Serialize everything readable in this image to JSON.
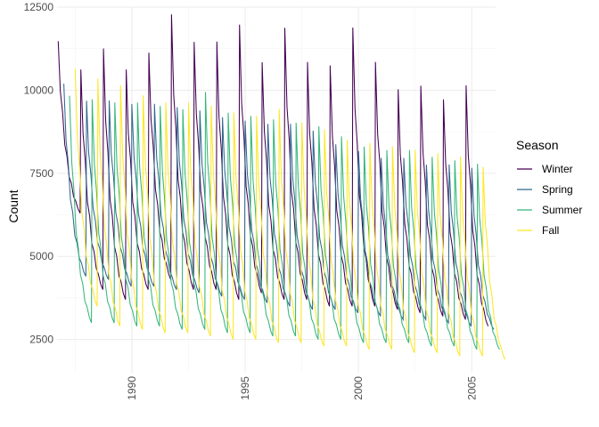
{
  "chart_data": {
    "type": "line",
    "title": "",
    "xlabel": "",
    "ylabel": "Count",
    "xlim": [
      1986.7,
      2006.05
    ],
    "ylim": [
      1500,
      12500
    ],
    "x_ticks": [
      1990,
      1995,
      2000,
      2005
    ],
    "x_tick_labels": [
      "1990",
      "1995",
      "2000",
      "2005"
    ],
    "y_ticks": [
      2500,
      5000,
      7500,
      10000,
      12500
    ],
    "y_tick_labels": [
      "2500",
      "5000",
      "7500",
      "10000",
      "12500"
    ],
    "grid": true,
    "x_tick_rotation": "vertical",
    "legend": {
      "title": "Season",
      "position": "right",
      "entries": [
        "Winter",
        "Spring",
        "Summer",
        "Fall"
      ]
    },
    "series": [
      {
        "name": "Winter",
        "color": "#440154",
        "start": 1986.75,
        "peaks": [
          11300,
          10400,
          11000,
          10400,
          10900,
          12000,
          11200,
          11200,
          11700,
          10600,
          11600,
          10600,
          10500,
          11600,
          10600,
          9800,
          9900,
          9500,
          9900
        ],
        "troughs": [
          6300,
          4000,
          3700,
          4000,
          4300,
          4000,
          4000,
          3700,
          3900,
          3700,
          3700,
          3500,
          3500,
          3500,
          3400,
          3300,
          3200,
          3100,
          2900
        ]
      },
      {
        "name": "Spring",
        "color": "#31688E",
        "start": 1987.0,
        "peaks": [
          10000,
          9500,
          9500,
          9400,
          9400,
          9300,
          9200,
          9000,
          8900,
          8800,
          8800,
          8600,
          8200,
          8000,
          7800,
          7800,
          7600,
          7600,
          7500
        ],
        "troughs": [
          4400,
          4300,
          4100,
          4100,
          4000,
          3900,
          3800,
          3700,
          3600,
          3500,
          3400,
          3400,
          3300,
          3200,
          3100,
          3100,
          3000,
          2900,
          2800
        ]
      },
      {
        "name": "Summer",
        "color": "#35B779",
        "start": 1987.25,
        "peaks": [
          9600,
          9500,
          9400,
          9400,
          9300,
          9200,
          9700,
          9100,
          9000,
          8900,
          8800,
          8700,
          8400,
          8100,
          8000,
          8000,
          7800,
          7700,
          7600
        ],
        "troughs": [
          3000,
          3000,
          2900,
          2900,
          2800,
          2800,
          2700,
          2700,
          2600,
          2600,
          2500,
          2500,
          2400,
          2400,
          2400,
          2300,
          2300,
          2200,
          2200
        ]
      },
      {
        "name": "Fall",
        "color": "#FDE725",
        "start": 1987.5,
        "peaks": [
          10400,
          10100,
          9900,
          9600,
          9400,
          9400,
          9300,
          9100,
          9000,
          9200,
          8800,
          8600,
          8300,
          8200,
          8100,
          8000,
          7900,
          7800,
          7500
        ],
        "troughs": [
          3500,
          2900,
          2800,
          2700,
          2700,
          2600,
          2500,
          2500,
          2400,
          2400,
          2300,
          2300,
          2200,
          2200,
          2100,
          2100,
          2000,
          2000,
          1900
        ]
      }
    ]
  }
}
